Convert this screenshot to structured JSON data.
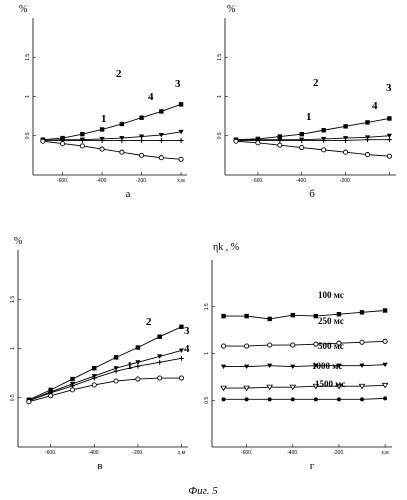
{
  "figure_caption": "Фиг. 5",
  "chart_data": [
    {
      "type": "line",
      "panel_label": "а",
      "ylabel": "%",
      "xlabel": "x,м",
      "xlim": [
        -750,
        30
      ],
      "ylim": [
        0,
        2
      ],
      "x_ticks": [
        -600,
        -400,
        -200,
        0
      ],
      "x_tick_labels": [
        "-600.",
        "-400.",
        "-200.",
        "x,м"
      ],
      "y_ticks": [
        0.5,
        1.0,
        1.5
      ],
      "y_tick_labels": [
        "0.5",
        "1",
        "1.5"
      ],
      "series": [
        {
          "name": "2",
          "marker": "filled-square",
          "x": [
            -700,
            -600,
            -500,
            -400,
            -300,
            -200,
            -100,
            0
          ],
          "y": [
            0.45,
            0.47,
            0.52,
            0.58,
            0.65,
            0.73,
            0.81,
            0.9
          ]
        },
        {
          "name": "3",
          "marker": "triangle-down",
          "x": [
            -700,
            -600,
            -500,
            -400,
            -300,
            -200,
            -100,
            0
          ],
          "y": [
            0.44,
            0.45,
            0.45,
            0.46,
            0.47,
            0.49,
            0.51,
            0.55
          ]
        },
        {
          "name": "4",
          "marker": "plus",
          "x": [
            -700,
            -600,
            -500,
            -400,
            -300,
            -200,
            -100,
            0
          ],
          "y": [
            0.44,
            0.44,
            0.44,
            0.44,
            0.44,
            0.44,
            0.44,
            0.44
          ]
        },
        {
          "name": "1",
          "marker": "open-circle",
          "x": [
            -700,
            -600,
            -500,
            -400,
            -300,
            -200,
            -100,
            0
          ],
          "y": [
            0.43,
            0.4,
            0.37,
            0.33,
            0.29,
            0.25,
            0.22,
            0.2
          ]
        }
      ]
    },
    {
      "type": "line",
      "panel_label": "б",
      "ylabel": "%",
      "xlabel": "",
      "xlim": [
        -750,
        30
      ],
      "ylim": [
        0,
        2
      ],
      "x_ticks": [
        -600,
        -400,
        -200,
        0
      ],
      "x_tick_labels": [
        "-600.",
        "-400.",
        "-200.",
        ""
      ],
      "y_ticks": [
        0.5,
        1.0,
        1.5
      ],
      "y_tick_labels": [
        "0.5",
        "1",
        "1.5"
      ],
      "series": [
        {
          "name": "2",
          "marker": "filled-square",
          "x": [
            -700,
            -600,
            -500,
            -400,
            -300,
            -200,
            -100,
            0
          ],
          "y": [
            0.45,
            0.46,
            0.49,
            0.52,
            0.57,
            0.62,
            0.67,
            0.72
          ]
        },
        {
          "name": "3",
          "marker": "triangle-down",
          "x": [
            -700,
            -600,
            -500,
            -400,
            -300,
            -200,
            -100,
            0
          ],
          "y": [
            0.44,
            0.45,
            0.45,
            0.45,
            0.46,
            0.47,
            0.48,
            0.5
          ]
        },
        {
          "name": "4",
          "marker": "plus",
          "x": [
            -700,
            -600,
            -500,
            -400,
            -300,
            -200,
            -100,
            0
          ],
          "y": [
            0.44,
            0.44,
            0.44,
            0.44,
            0.44,
            0.44,
            0.45,
            0.45
          ]
        },
        {
          "name": "1",
          "marker": "open-circle",
          "x": [
            -700,
            -600,
            -500,
            -400,
            -300,
            -200,
            -100,
            0
          ],
          "y": [
            0.43,
            0.41,
            0.38,
            0.35,
            0.32,
            0.29,
            0.26,
            0.24
          ]
        }
      ]
    },
    {
      "type": "line",
      "panel_label": "в",
      "ylabel": "%",
      "xlabel": "x,м",
      "xlim": [
        -750,
        30
      ],
      "ylim": [
        0,
        2
      ],
      "x_ticks": [
        -600,
        -400,
        -200,
        0
      ],
      "x_tick_labels": [
        "-600.",
        "-400.",
        "-200.",
        "x,м"
      ],
      "y_ticks": [
        0.5,
        1.0,
        1.5
      ],
      "y_tick_labels": [
        "0.5",
        "1",
        "1.5"
      ],
      "series": [
        {
          "name": "2",
          "marker": "filled-square",
          "x": [
            -700,
            -600,
            -500,
            -400,
            -300,
            -200,
            -100,
            0
          ],
          "y": [
            0.48,
            0.58,
            0.69,
            0.8,
            0.91,
            1.01,
            1.12,
            1.22
          ]
        },
        {
          "name": "3",
          "marker": "triangle-down",
          "x": [
            -700,
            -600,
            -500,
            -400,
            -300,
            -200,
            -100,
            0
          ],
          "y": [
            0.47,
            0.56,
            0.64,
            0.72,
            0.8,
            0.86,
            0.92,
            0.98
          ]
        },
        {
          "name": "4",
          "marker": "plus",
          "x": [
            -700,
            -600,
            -500,
            -400,
            -300,
            -200,
            -100,
            0
          ],
          "y": [
            0.47,
            0.55,
            0.62,
            0.7,
            0.77,
            0.82,
            0.86,
            0.9
          ]
        },
        {
          "name": "1",
          "marker": "open-circle",
          "x": [
            -700,
            -600,
            -500,
            -400,
            -300,
            -200,
            -100,
            0
          ],
          "y": [
            0.46,
            0.52,
            0.58,
            0.63,
            0.67,
            0.69,
            0.7,
            0.7
          ]
        }
      ]
    },
    {
      "type": "line",
      "panel_label": "г",
      "ylabel": "ηk , %",
      "xlabel": "x,м",
      "xlim": [
        -750,
        30
      ],
      "ylim": [
        0,
        2
      ],
      "x_ticks": [
        -600,
        -400,
        -200,
        0
      ],
      "x_tick_labels": [
        "-600.",
        "-400.",
        "-200.",
        "x,м"
      ],
      "y_ticks": [
        0.5,
        1.0,
        1.5
      ],
      "y_tick_labels": [
        "0.5",
        "1",
        "1.5"
      ],
      "series": [
        {
          "name": "100 мс",
          "marker": "filled-square",
          "x": [
            -700,
            -600,
            -500,
            -400,
            -300,
            -200,
            -100,
            0
          ],
          "y": [
            1.4,
            1.4,
            1.37,
            1.41,
            1.4,
            1.42,
            1.44,
            1.46
          ]
        },
        {
          "name": "250 мс",
          "marker": "open-circle",
          "x": [
            -700,
            -600,
            -500,
            -400,
            -300,
            -200,
            -100,
            0
          ],
          "y": [
            1.08,
            1.08,
            1.09,
            1.09,
            1.1,
            1.11,
            1.12,
            1.13
          ]
        },
        {
          "name": "500 мс",
          "marker": "triangle-down",
          "x": [
            -700,
            -600,
            -500,
            -400,
            -300,
            -200,
            -100,
            0
          ],
          "y": [
            0.86,
            0.86,
            0.87,
            0.86,
            0.87,
            0.87,
            0.87,
            0.88
          ]
        },
        {
          "name": "1000 мс",
          "marker": "open-triangle-down",
          "x": [
            -700,
            -600,
            -500,
            -400,
            -300,
            -200,
            -100,
            0
          ],
          "y": [
            0.63,
            0.63,
            0.64,
            0.64,
            0.65,
            0.65,
            0.65,
            0.66
          ]
        },
        {
          "name": "1500 мс",
          "marker": "filled-circle",
          "x": [
            -700,
            -600,
            -500,
            -400,
            -300,
            -200,
            -100,
            0
          ],
          "y": [
            0.51,
            0.51,
            0.51,
            0.51,
            0.51,
            0.51,
            0.51,
            0.52
          ]
        }
      ]
    }
  ]
}
